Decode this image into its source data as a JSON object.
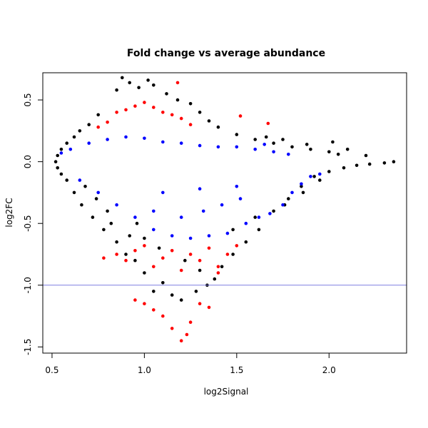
{
  "chart_data": {
    "type": "scatter",
    "title": "Fold change vs average abundance",
    "xlabel": "log2Signal",
    "ylabel": "log2FC",
    "xlim": [
      0.45,
      2.42
    ],
    "ylim": [
      -1.55,
      0.72
    ],
    "x_ticks": [
      "0.5",
      "1.0",
      "1.5",
      "2.0"
    ],
    "y_ticks": [
      "-1.5",
      "-1.0",
      "-0.5",
      "0.0",
      "0.5"
    ],
    "grid": false,
    "legend": "none",
    "reference_line": {
      "y": -1.0,
      "color": "#7f7fe0"
    },
    "series_colors": {
      "black": "#000000",
      "blue": "#0000ff",
      "red": "#ff0000"
    },
    "series": [
      {
        "color": "black",
        "points": [
          [
            0.88,
            0.68
          ],
          [
            0.92,
            0.64
          ],
          [
            1.02,
            0.66
          ],
          [
            1.05,
            0.62
          ],
          [
            0.97,
            0.6
          ],
          [
            1.12,
            0.55
          ],
          [
            0.85,
            0.58
          ],
          [
            1.18,
            0.5
          ],
          [
            1.25,
            0.47
          ],
          [
            1.3,
            0.4
          ],
          [
            0.75,
            0.38
          ],
          [
            0.7,
            0.3
          ],
          [
            0.65,
            0.25
          ],
          [
            0.62,
            0.2
          ],
          [
            0.58,
            0.15
          ],
          [
            0.55,
            0.1
          ],
          [
            0.53,
            0.05
          ],
          [
            0.52,
            0.0
          ],
          [
            0.53,
            -0.05
          ],
          [
            0.55,
            -0.1
          ],
          [
            0.58,
            -0.15
          ],
          [
            0.62,
            -0.25
          ],
          [
            0.66,
            -0.35
          ],
          [
            0.72,
            -0.45
          ],
          [
            0.78,
            -0.55
          ],
          [
            0.85,
            -0.65
          ],
          [
            0.9,
            -0.75
          ],
          [
            0.95,
            -0.8
          ],
          [
            1.0,
            -0.9
          ],
          [
            1.05,
            -1.05
          ],
          [
            1.1,
            -0.98
          ],
          [
            1.15,
            -1.08
          ],
          [
            1.2,
            -1.12
          ],
          [
            1.28,
            -1.05
          ],
          [
            1.34,
            -1.0
          ],
          [
            1.38,
            -0.95
          ],
          [
            1.42,
            -0.85
          ],
          [
            1.48,
            -0.75
          ],
          [
            1.55,
            -0.65
          ],
          [
            1.62,
            -0.55
          ],
          [
            1.7,
            -0.4
          ],
          [
            1.78,
            -0.3
          ],
          [
            1.85,
            -0.2
          ],
          [
            1.92,
            -0.12
          ],
          [
            2.0,
            -0.08
          ],
          [
            2.08,
            -0.05
          ],
          [
            2.15,
            -0.03
          ],
          [
            2.22,
            -0.02
          ],
          [
            2.3,
            -0.01
          ],
          [
            2.35,
            0.0
          ],
          [
            2.0,
            0.08
          ],
          [
            2.05,
            0.06
          ],
          [
            1.9,
            0.1
          ],
          [
            1.8,
            0.12
          ],
          [
            1.7,
            0.15
          ],
          [
            1.6,
            0.18
          ],
          [
            1.5,
            0.22
          ],
          [
            1.4,
            0.28
          ],
          [
            1.35,
            0.33
          ],
          [
            2.02,
            0.16
          ],
          [
            1.66,
            0.2
          ],
          [
            1.75,
            0.18
          ],
          [
            1.88,
            0.14
          ],
          [
            2.1,
            0.1
          ],
          [
            2.2,
            0.05
          ],
          [
            1.95,
            -0.15
          ],
          [
            1.86,
            -0.25
          ],
          [
            1.76,
            -0.35
          ],
          [
            1.6,
            -0.45
          ],
          [
            1.48,
            -0.55
          ],
          [
            0.8,
            -0.4
          ],
          [
            0.74,
            -0.3
          ],
          [
            0.68,
            -0.2
          ],
          [
            0.92,
            -0.6
          ],
          [
            0.82,
            -0.5
          ],
          [
            1.22,
            -0.8
          ],
          [
            1.3,
            -0.88
          ],
          [
            1.08,
            -0.7
          ],
          [
            1.0,
            -0.62
          ],
          [
            0.96,
            -0.5
          ]
        ]
      },
      {
        "color": "blue",
        "points": [
          [
            0.55,
            0.07
          ],
          [
            0.6,
            0.1
          ],
          [
            0.7,
            0.15
          ],
          [
            0.8,
            0.18
          ],
          [
            0.9,
            0.2
          ],
          [
            1.0,
            0.19
          ],
          [
            1.1,
            0.16
          ],
          [
            1.2,
            0.15
          ],
          [
            1.3,
            0.13
          ],
          [
            1.4,
            0.12
          ],
          [
            1.5,
            0.12
          ],
          [
            1.6,
            0.1
          ],
          [
            1.65,
            0.14
          ],
          [
            1.7,
            0.08
          ],
          [
            1.78,
            0.06
          ],
          [
            0.65,
            -0.15
          ],
          [
            0.75,
            -0.25
          ],
          [
            0.85,
            -0.35
          ],
          [
            0.95,
            -0.45
          ],
          [
            1.05,
            -0.55
          ],
          [
            1.15,
            -0.6
          ],
          [
            1.25,
            -0.62
          ],
          [
            1.35,
            -0.6
          ],
          [
            1.45,
            -0.58
          ],
          [
            1.55,
            -0.5
          ],
          [
            1.62,
            -0.45
          ],
          [
            1.68,
            -0.42
          ],
          [
            1.75,
            -0.35
          ],
          [
            1.8,
            -0.25
          ],
          [
            1.85,
            -0.18
          ],
          [
            1.9,
            -0.12
          ],
          [
            1.95,
            -0.1
          ],
          [
            1.05,
            -0.4
          ],
          [
            1.2,
            -0.45
          ],
          [
            1.32,
            -0.4
          ],
          [
            1.42,
            -0.35
          ],
          [
            1.52,
            -0.3
          ],
          [
            1.1,
            -0.25
          ],
          [
            1.3,
            -0.22
          ],
          [
            1.5,
            -0.2
          ]
        ]
      },
      {
        "color": "red",
        "points": [
          [
            0.75,
            0.28
          ],
          [
            0.8,
            0.32
          ],
          [
            0.85,
            0.4
          ],
          [
            0.9,
            0.42
          ],
          [
            0.95,
            0.45
          ],
          [
            1.0,
            0.48
          ],
          [
            1.05,
            0.44
          ],
          [
            1.1,
            0.4
          ],
          [
            1.15,
            0.38
          ],
          [
            1.2,
            0.35
          ],
          [
            1.25,
            0.3
          ],
          [
            1.18,
            0.64
          ],
          [
            1.52,
            0.37
          ],
          [
            1.67,
            0.31
          ],
          [
            0.78,
            -0.78
          ],
          [
            0.85,
            -0.75
          ],
          [
            0.9,
            -0.8
          ],
          [
            0.95,
            -0.72
          ],
          [
            1.0,
            -0.68
          ],
          [
            1.05,
            -0.85
          ],
          [
            1.1,
            -0.78
          ],
          [
            1.15,
            -0.72
          ],
          [
            1.2,
            -0.88
          ],
          [
            1.25,
            -0.75
          ],
          [
            1.3,
            -0.8
          ],
          [
            1.35,
            -0.7
          ],
          [
            1.4,
            -0.85
          ],
          [
            1.45,
            -0.75
          ],
          [
            1.5,
            -0.68
          ],
          [
            1.0,
            -1.15
          ],
          [
            1.05,
            -1.2
          ],
          [
            1.1,
            -1.25
          ],
          [
            1.15,
            -1.35
          ],
          [
            1.2,
            -1.45
          ],
          [
            1.23,
            -1.4
          ],
          [
            1.25,
            -1.3
          ],
          [
            1.3,
            -1.15
          ],
          [
            1.35,
            -1.18
          ],
          [
            0.95,
            -1.12
          ],
          [
            1.4,
            -0.9
          ]
        ]
      }
    ]
  }
}
